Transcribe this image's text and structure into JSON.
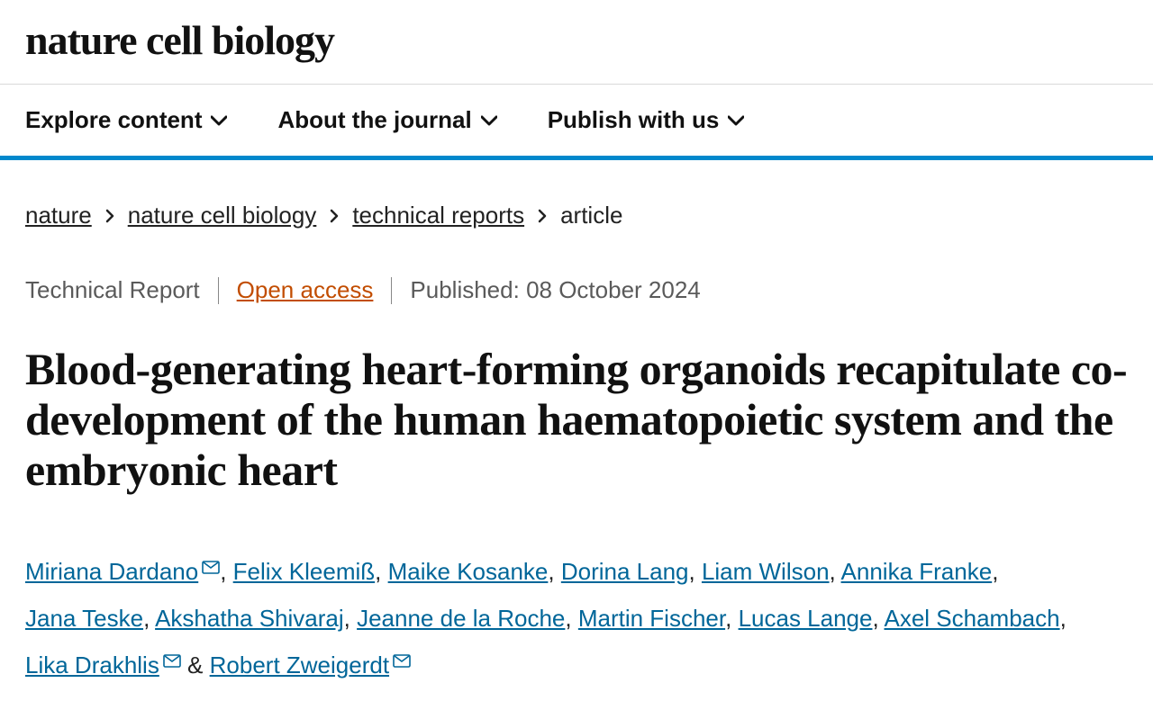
{
  "accent_color": "#0088cc",
  "link_color": "#006699",
  "access_color": "#c24d00",
  "journal": "nature cell biology",
  "nav": [
    {
      "label": "Explore content"
    },
    {
      "label": "About the journal"
    },
    {
      "label": "Publish with us"
    }
  ],
  "breadcrumbs": {
    "items": [
      {
        "label": "nature",
        "link": true
      },
      {
        "label": "nature cell biology",
        "link": true
      },
      {
        "label": "technical reports",
        "link": true
      },
      {
        "label": "article",
        "link": false
      }
    ]
  },
  "meta": {
    "type": "Technical Report",
    "access": "Open access",
    "published_label": "Published:",
    "published_date": "08 October 2024"
  },
  "title": "Blood-generating heart-forming organoids recapitulate co-development of the human haematopoietic system and the embryonic heart",
  "authors": [
    {
      "name": "Miriana Dardano",
      "corresponding": true
    },
    {
      "name": "Felix Kleemiß",
      "corresponding": false
    },
    {
      "name": "Maike Kosanke",
      "corresponding": false
    },
    {
      "name": "Dorina Lang",
      "corresponding": false
    },
    {
      "name": "Liam Wilson",
      "corresponding": false
    },
    {
      "name": "Annika Franke",
      "corresponding": false
    },
    {
      "name": "Jana Teske",
      "corresponding": false
    },
    {
      "name": "Akshatha Shivaraj",
      "corresponding": false
    },
    {
      "name": "Jeanne de la Roche",
      "corresponding": false
    },
    {
      "name": "Martin Fischer",
      "corresponding": false
    },
    {
      "name": "Lucas Lange",
      "corresponding": false
    },
    {
      "name": "Axel Schambach",
      "corresponding": false
    },
    {
      "name": "Lika Drakhlis",
      "corresponding": true
    },
    {
      "name": "Robert Zweigerdt",
      "corresponding": true
    }
  ]
}
